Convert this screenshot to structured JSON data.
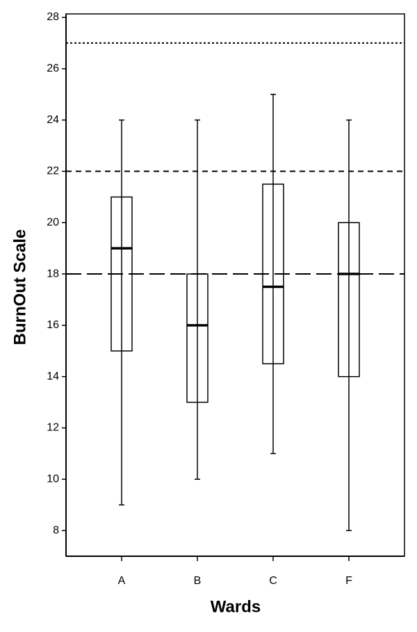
{
  "chart_data": {
    "type": "box",
    "x_label": "Wards",
    "y_label": "BurnOut Scale",
    "categories": [
      "A",
      "B",
      "C",
      "F"
    ],
    "boxes": [
      {
        "min": 9,
        "q1": 15,
        "median": 19,
        "q3": 21,
        "max": 24
      },
      {
        "min": 10,
        "q1": 13,
        "median": 16,
        "q3": 18,
        "max": 24
      },
      {
        "min": 11,
        "q1": 14.5,
        "median": 17.5,
        "q3": 21.5,
        "max": 25
      },
      {
        "min": 8,
        "q1": 14,
        "median": 18,
        "q3": 20,
        "max": 24
      }
    ],
    "color": "#000000",
    "ylim": [
      7,
      28
    ],
    "yticks": [
      8,
      10,
      12,
      14,
      16,
      18,
      20,
      22,
      24,
      26,
      28
    ],
    "reference_lines": [
      {
        "value": 27,
        "style": "dotted"
      },
      {
        "value": 22,
        "style": "dashed"
      },
      {
        "value": 18,
        "style": "long-dashed"
      }
    ]
  }
}
